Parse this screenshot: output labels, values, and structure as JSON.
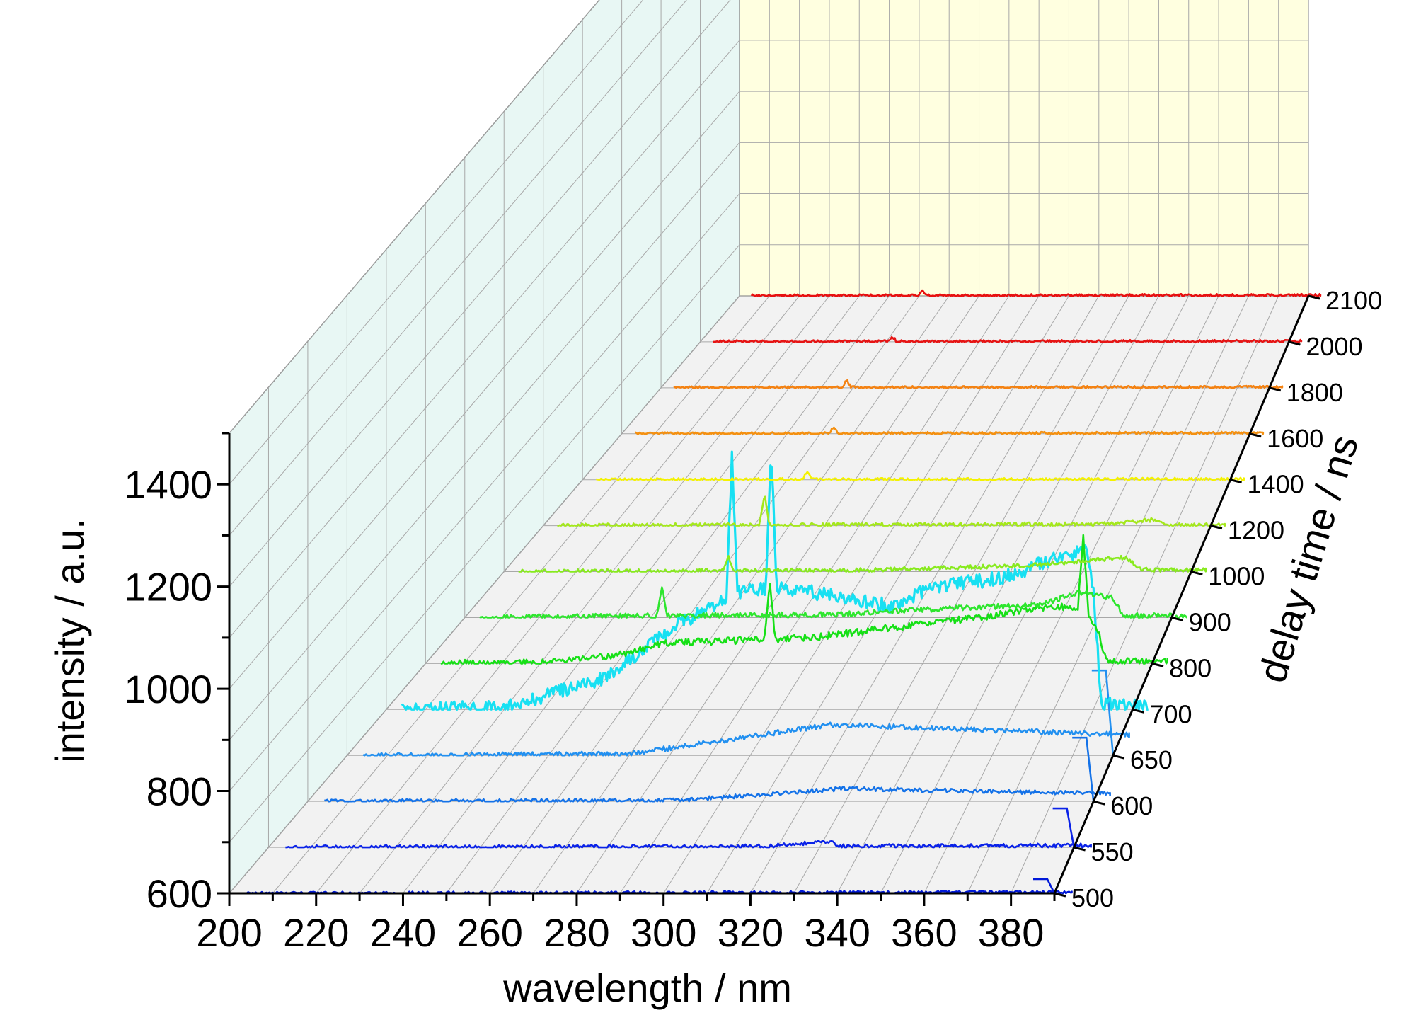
{
  "chart_data": {
    "type": "line",
    "subtype": "3d-waterfall",
    "title": "",
    "xlabel": "wavelength / nm",
    "ylabel": "intensity / a.u.",
    "zlabel": "delay time / ns",
    "x_ticks": [
      200,
      220,
      240,
      260,
      280,
      300,
      320,
      340,
      360,
      380
    ],
    "xlim": [
      200,
      390
    ],
    "y_ticks": [
      600,
      800,
      1000,
      1200,
      1400
    ],
    "ylim": [
      600,
      1500
    ],
    "z_ticks": [
      500,
      550,
      600,
      650,
      700,
      800,
      900,
      1000,
      1200,
      1400,
      1600,
      1800,
      2000,
      2100
    ],
    "wall_colors": {
      "side": "#e8f7f4",
      "back": "#ffffe0",
      "floor": "#f2f2f2"
    },
    "series": [
      {
        "delay": 500,
        "color": "#0018d8",
        "baseline": 600,
        "noise": 3,
        "points": [
          [
            200,
            600
          ],
          [
            395,
            602
          ]
        ],
        "end_plateau": 20,
        "spikes": []
      },
      {
        "delay": 550,
        "color": "#0a22e8",
        "baseline": 600,
        "noise": 4,
        "points": [
          [
            200,
            600
          ],
          [
            318,
            602
          ],
          [
            332,
            612
          ],
          [
            335,
            602
          ],
          [
            395,
            604
          ]
        ],
        "end_plateau": 55,
        "spikes": []
      },
      {
        "delay": 600,
        "color": "#1472e8",
        "baseline": 600,
        "noise": 4,
        "points": [
          [
            200,
            600
          ],
          [
            290,
            602
          ],
          [
            330,
            625
          ],
          [
            395,
            615
          ]
        ],
        "end_plateau": 90,
        "spikes": []
      },
      {
        "delay": 650,
        "color": "#2290f0",
        "baseline": 600,
        "noise": 5,
        "points": [
          [
            200,
            600
          ],
          [
            270,
            603
          ],
          [
            320,
            660
          ],
          [
            395,
            640
          ]
        ],
        "end_plateau": 120,
        "spikes": []
      },
      {
        "delay": 700,
        "color": "#18e0f2",
        "baseline": 600,
        "noise": 14,
        "points": [
          [
            200,
            600
          ],
          [
            230,
            603
          ],
          [
            255,
            660
          ],
          [
            275,
            770
          ],
          [
            290,
            830
          ],
          [
            300,
            840
          ],
          [
            315,
            820
          ],
          [
            330,
            800
          ],
          [
            338,
            840
          ],
          [
            350,
            850
          ],
          [
            358,
            860
          ],
          [
            372,
            900
          ],
          [
            378,
            910
          ],
          [
            380,
            840
          ],
          [
            382,
            610
          ],
          [
            395,
            605
          ]
        ],
        "end_plateau": 0,
        "spikes": [
          [
            288,
            880
          ],
          [
            298,
            868
          ]
        ]
      },
      {
        "delay": 800,
        "color": "#16e016",
        "baseline": 600,
        "noise": 7,
        "points": [
          [
            200,
            600
          ],
          [
            230,
            602
          ],
          [
            252,
            618
          ],
          [
            262,
            640
          ],
          [
            300,
            650
          ],
          [
            322,
            670
          ],
          [
            345,
            690
          ],
          [
            360,
            710
          ],
          [
            372,
            712
          ],
          [
            376,
            660
          ],
          [
            378,
            604
          ],
          [
            395,
            603
          ]
        ],
        "end_plateau": 0,
        "spikes": [
          [
            290,
            715
          ],
          [
            372,
            740
          ]
        ]
      },
      {
        "delay": 900,
        "color": "#2ee62e",
        "baseline": 600,
        "noise": 5,
        "points": [
          [
            200,
            600
          ],
          [
            240,
            603
          ],
          [
            300,
            606
          ],
          [
            330,
            618
          ],
          [
            355,
            625
          ],
          [
            365,
            650
          ],
          [
            374,
            640
          ],
          [
            377,
            604
          ],
          [
            395,
            603
          ]
        ],
        "end_plateau": 0,
        "spikes": [
          [
            253,
            655
          ]
        ]
      },
      {
        "delay": 1000,
        "color": "#88ea1e",
        "baseline": 600,
        "noise": 4,
        "points": [
          [
            200,
            600
          ],
          [
            300,
            603
          ],
          [
            345,
            612
          ],
          [
            372,
            628
          ],
          [
            376,
            604
          ],
          [
            395,
            603
          ]
        ],
        "end_plateau": 0,
        "spikes": [
          [
            262,
            628
          ]
        ]
      },
      {
        "delay": 1200,
        "color": "#a4e81c",
        "baseline": 600,
        "noise": 4,
        "points": [
          [
            200,
            600
          ],
          [
            360,
            603
          ],
          [
            375,
            612
          ],
          [
            378,
            601
          ],
          [
            395,
            601
          ]
        ],
        "end_plateau": 0,
        "spikes": [
          [
            263,
            662
          ]
        ]
      },
      {
        "delay": 1400,
        "color": "#f4f200",
        "baseline": 600,
        "noise": 3,
        "points": [
          [
            200,
            600
          ],
          [
            395,
            601
          ]
        ],
        "end_plateau": 0,
        "spikes": [
          [
            266,
            618
          ]
        ]
      },
      {
        "delay": 1600,
        "color": "#f49010",
        "baseline": 600,
        "noise": 3,
        "points": [
          [
            200,
            600
          ],
          [
            395,
            601
          ]
        ],
        "end_plateau": 0,
        "spikes": [
          [
            264,
            614
          ]
        ]
      },
      {
        "delay": 1800,
        "color": "#f48212",
        "baseline": 600,
        "noise": 3,
        "points": [
          [
            200,
            600
          ],
          [
            395,
            601
          ]
        ],
        "end_plateau": 0,
        "spikes": [
          [
            258,
            615
          ]
        ]
      },
      {
        "delay": 2000,
        "color": "#e61414",
        "baseline": 600,
        "noise": 3,
        "points": [
          [
            200,
            600
          ],
          [
            395,
            601
          ]
        ],
        "end_plateau": 0,
        "spikes": [
          [
            262,
            610
          ]
        ]
      },
      {
        "delay": 2100,
        "color": "#e81010",
        "baseline": 600,
        "noise": 3,
        "points": [
          [
            200,
            600
          ],
          [
            395,
            601
          ]
        ],
        "end_plateau": 0,
        "spikes": [
          [
            261,
            608
          ]
        ]
      }
    ]
  }
}
